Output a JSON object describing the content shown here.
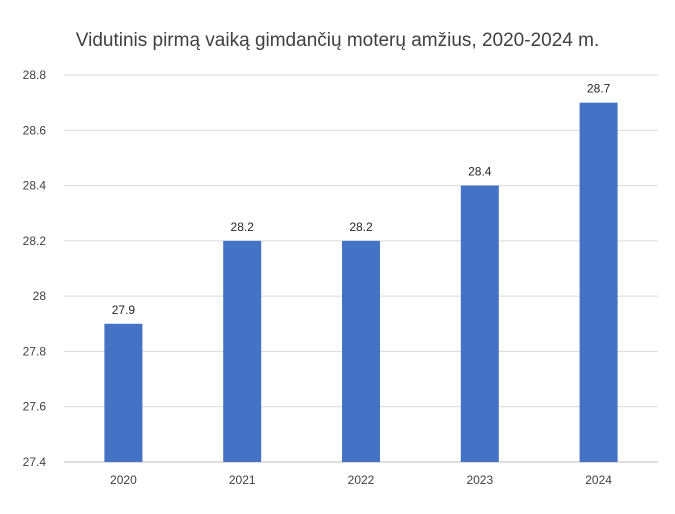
{
  "chart_data": {
    "type": "bar",
    "title": "Vidutinis pirmą vaiką gimdančių moterų amžius, 2020-2024 m.",
    "xlabel": "",
    "ylabel": "",
    "categories": [
      "2020",
      "2021",
      "2022",
      "2023",
      "2024"
    ],
    "values": [
      27.9,
      28.2,
      28.2,
      28.4,
      28.7
    ],
    "data_labels": [
      "27.9",
      "28.2",
      "28.2",
      "28.4",
      "28.7"
    ],
    "ylim": [
      27.4,
      28.8
    ],
    "yticks": [
      27.4,
      27.6,
      27.8,
      28,
      28.2,
      28.4,
      28.6,
      28.8
    ],
    "ytick_labels": [
      "27.4",
      "27.6",
      "27.8",
      "28",
      "28.2",
      "28.4",
      "28.6",
      "28.8"
    ],
    "grid": true,
    "legend": "none",
    "colors": {
      "bar": "#4472C4",
      "grid": "#D9D9D9",
      "axis": "#BFBFBF"
    }
  }
}
